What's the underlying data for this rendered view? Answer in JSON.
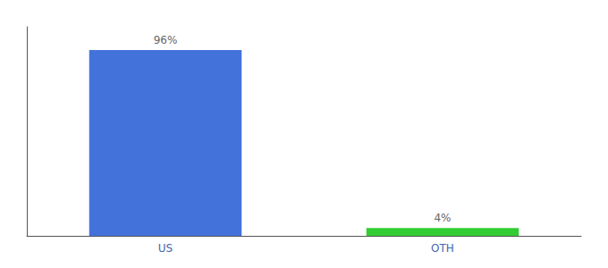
{
  "chart_data": {
    "type": "bar",
    "categories": [
      "US",
      "OTH"
    ],
    "values": [
      96,
      4
    ],
    "value_labels": [
      "96%",
      "4%"
    ],
    "colors": [
      "#4472db",
      "#33cc33"
    ],
    "ylim": [
      0,
      108
    ],
    "grid": false,
    "tick_labels": "x"
  }
}
